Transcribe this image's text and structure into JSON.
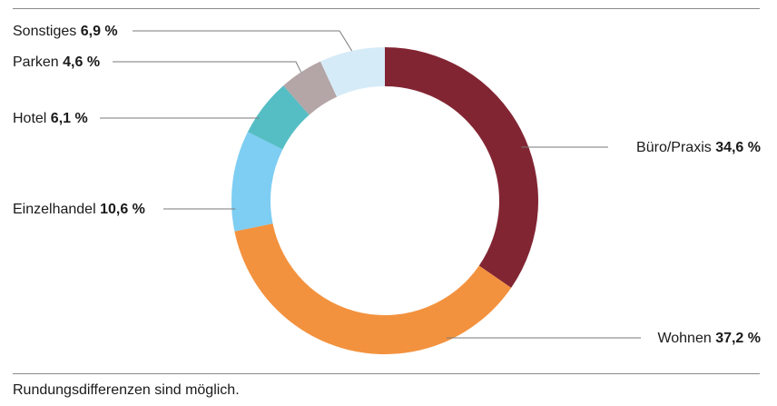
{
  "chart_data": {
    "type": "pie",
    "donut": true,
    "slices": [
      {
        "label": "Büro/Praxis",
        "value": 34.6,
        "value_text": "34,6 %",
        "color": "#822533",
        "label_side": "right"
      },
      {
        "label": "Wohnen",
        "value": 37.2,
        "value_text": "37,2 %",
        "color": "#f3923e",
        "label_side": "right"
      },
      {
        "label": "Einzelhandel",
        "value": 10.6,
        "value_text": "10,6 %",
        "color": "#7ecdf2",
        "label_side": "left"
      },
      {
        "label": "Hotel",
        "value": 6.1,
        "value_text": "6,1 %",
        "color": "#55bec4",
        "label_side": "left"
      },
      {
        "label": "Parken",
        "value": 4.6,
        "value_text": "4,6 %",
        "color": "#b4a5a6",
        "label_side": "left"
      },
      {
        "label": "Sonstiges",
        "value": 6.9,
        "value_text": "6,9 %",
        "color": "#d6ebf8",
        "label_side": "left"
      }
    ]
  },
  "footnote": "Rundungsdifferenzen sind möglich."
}
